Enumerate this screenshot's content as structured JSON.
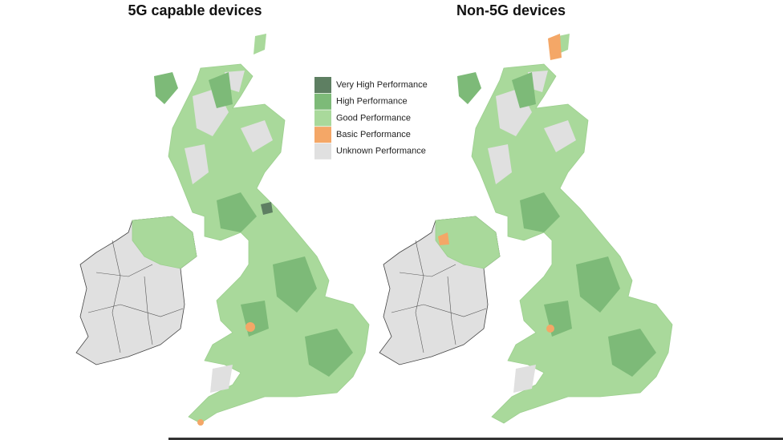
{
  "maps": [
    {
      "title": "5G capable devices"
    },
    {
      "title": "Non-5G devices"
    }
  ],
  "legend": [
    {
      "label": "Very High Performance",
      "color": "#5e7f62"
    },
    {
      "label": "High Performance",
      "color": "#7dba78"
    },
    {
      "label": "Good Performance",
      "color": "#a9d99b"
    },
    {
      "label": "Basic Performance",
      "color": "#f4a767"
    },
    {
      "label": "Unknown Performance",
      "color": "#e0e0e0"
    }
  ]
}
